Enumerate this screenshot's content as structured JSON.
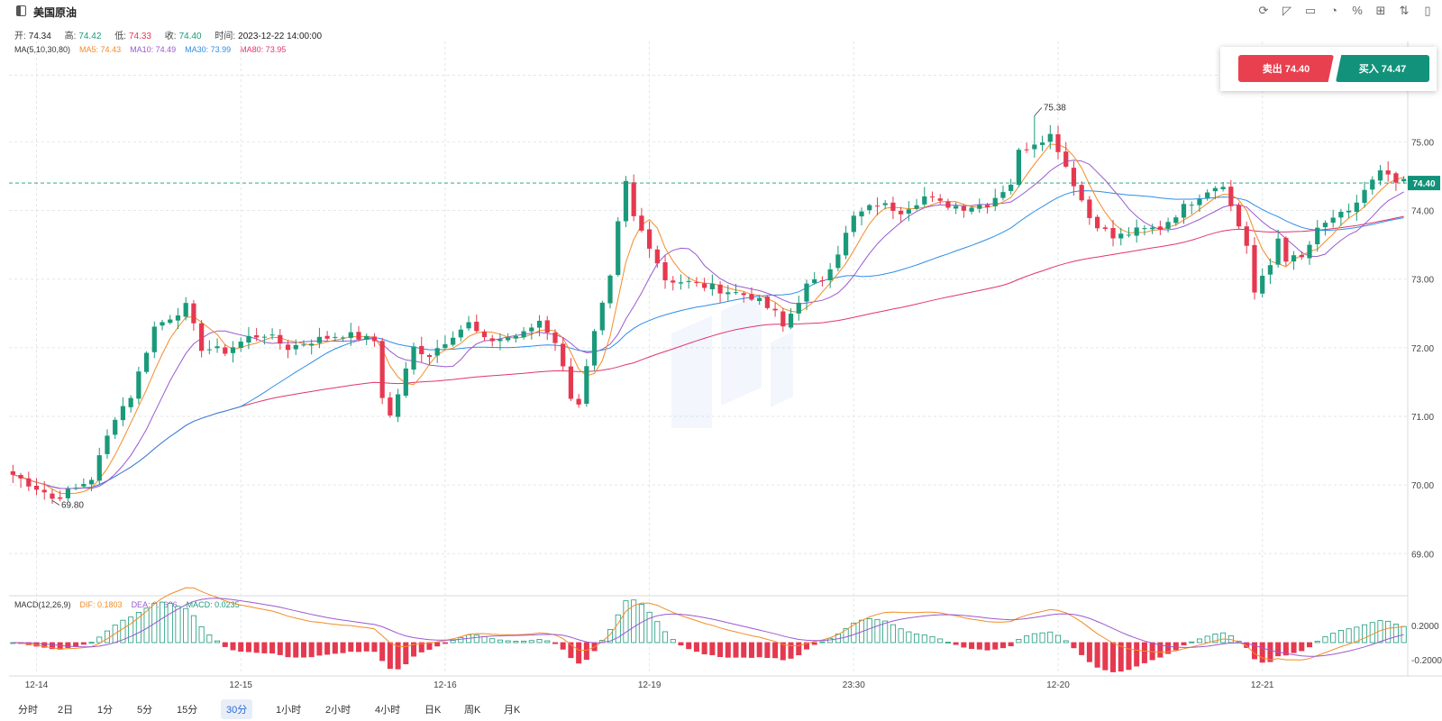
{
  "title": "美国原油",
  "ohlc": {
    "open_label": "开:",
    "open": "74.34",
    "high_label": "高:",
    "high": "74.42",
    "low_label": "低:",
    "low": "74.33",
    "close_label": "收:",
    "close": "74.40",
    "time_label": "时间:",
    "time": "2023-12-22 14:00:00"
  },
  "ma_legend": [
    {
      "text": "MA(5,10,30,80)",
      "color": "#333333"
    },
    {
      "text": "MA5: 74.43",
      "color": "#f28c28"
    },
    {
      "text": "MA10: 74.49",
      "color": "#9b59d0"
    },
    {
      "text": "MA30: 73.99",
      "color": "#2e8de6"
    },
    {
      "text": "MA80: 73.95",
      "color": "#e0356b"
    }
  ],
  "macd_legend": [
    {
      "text": "MACD(12,26,9)",
      "color": "#333333"
    },
    {
      "text": "DIF: 0.1803",
      "color": "#f28c28"
    },
    {
      "text": "DEA: 0.1686",
      "color": "#9b59d0"
    },
    {
      "text": "MACD: 0.0235",
      "color": "#1a9a7a"
    }
  ],
  "trade": {
    "sell": "卖出 74.40",
    "buy": "买入 74.47"
  },
  "toolbar_icons": [
    "refresh-icon",
    "draw-icon",
    "chart-type-icon",
    "pie-icon",
    "percent-icon",
    "layout-icon",
    "compare-icon",
    "panel-icon"
  ],
  "periods": [
    {
      "label": "分时",
      "active": false
    },
    {
      "label": "2日",
      "active": false
    },
    {
      "label": "1分",
      "active": false
    },
    {
      "label": "5分",
      "active": false
    },
    {
      "label": "15分",
      "active": false
    },
    {
      "label": "30分",
      "active": true
    },
    {
      "label": "1小时",
      "active": false
    },
    {
      "label": "2小时",
      "active": false
    },
    {
      "label": "4小时",
      "active": false
    },
    {
      "label": "日K",
      "active": false
    },
    {
      "label": "周K",
      "active": false
    },
    {
      "label": "月K",
      "active": false
    }
  ],
  "colors": {
    "up": "#1a9a7a",
    "down": "#e53950",
    "ma5": "#f28c28",
    "ma10": "#9b59d0",
    "ma30": "#2e8de6",
    "ma80": "#e0356b",
    "dif": "#f28c28",
    "dea": "#9b59d0"
  },
  "chart_data": {
    "type": "candlestick",
    "instrument": "美国原油",
    "price_axis": {
      "ticks": [
        75.0,
        74.0,
        73.0,
        72.0,
        71.0,
        70.0,
        69.0
      ],
      "tick_labels": [
        "75.00",
        "74.00",
        "73.00",
        "72.00",
        "71.00",
        "70.00",
        "69.00"
      ],
      "range": [
        68.4,
        76.2
      ]
    },
    "x_ticks": [
      {
        "label": "12-14",
        "index": 3
      },
      {
        "label": "12-15",
        "index": 29
      },
      {
        "label": "12-16",
        "index": 55
      },
      {
        "label": "12-19",
        "index": 81
      },
      {
        "label": "23:30",
        "index": 107
      },
      {
        "label": "12-20",
        "index": 133
      },
      {
        "label": "12-21",
        "index": 159
      }
    ],
    "last_price": "74.40",
    "annotations": [
      {
        "label": "75.38",
        "index": 130,
        "value": 75.38
      },
      {
        "label": "69.80",
        "index": 5,
        "value": 69.8
      }
    ],
    "anchors": [
      [
        0,
        70.15
      ],
      [
        4,
        69.9
      ],
      [
        5,
        69.8
      ],
      [
        8,
        69.95
      ],
      [
        10,
        70.1
      ],
      [
        13,
        71.0
      ],
      [
        15,
        71.3
      ],
      [
        18,
        72.3
      ],
      [
        22,
        72.6
      ],
      [
        24,
        72.0
      ],
      [
        27,
        71.95
      ],
      [
        30,
        72.15
      ],
      [
        32,
        72.2
      ],
      [
        35,
        72.0
      ],
      [
        38,
        72.1
      ],
      [
        42,
        72.2
      ],
      [
        46,
        72.1
      ],
      [
        47,
        71.3
      ],
      [
        48,
        71.0
      ],
      [
        51,
        72.0
      ],
      [
        53,
        71.9
      ],
      [
        56,
        72.2
      ],
      [
        58,
        72.35
      ],
      [
        60,
        72.1
      ],
      [
        63,
        72.15
      ],
      [
        65,
        72.2
      ],
      [
        67,
        72.4
      ],
      [
        69,
        72.1
      ],
      [
        71,
        71.3
      ],
      [
        72,
        71.2
      ],
      [
        74,
        72.2
      ],
      [
        76,
        73.0
      ],
      [
        77,
        73.8
      ],
      [
        78,
        74.4
      ],
      [
        79,
        73.9
      ],
      [
        81,
        73.5
      ],
      [
        83,
        73.0
      ],
      [
        86,
        72.95
      ],
      [
        90,
        72.85
      ],
      [
        94,
        72.75
      ],
      [
        97,
        72.5
      ],
      [
        98,
        72.3
      ],
      [
        101,
        72.9
      ],
      [
        103,
        73.0
      ],
      [
        105,
        73.4
      ],
      [
        107,
        73.9
      ],
      [
        110,
        74.1
      ],
      [
        113,
        74.0
      ],
      [
        116,
        74.2
      ],
      [
        118,
        74.1
      ],
      [
        121,
        74.05
      ],
      [
        124,
        74.1
      ],
      [
        127,
        74.4
      ],
      [
        128,
        74.85
      ],
      [
        130,
        75.0
      ],
      [
        132,
        75.1
      ],
      [
        133,
        74.9
      ],
      [
        135,
        74.4
      ],
      [
        137,
        73.9
      ],
      [
        140,
        73.6
      ],
      [
        143,
        73.7
      ],
      [
        146,
        73.75
      ],
      [
        149,
        74.05
      ],
      [
        152,
        74.3
      ],
      [
        154,
        74.4
      ],
      [
        155,
        74.05
      ],
      [
        157,
        73.5
      ],
      [
        158,
        72.8
      ],
      [
        160,
        73.2
      ],
      [
        161,
        73.6
      ],
      [
        162,
        73.3
      ],
      [
        164,
        73.3
      ],
      [
        166,
        73.7
      ],
      [
        168,
        73.9
      ],
      [
        170,
        73.95
      ],
      [
        172,
        74.3
      ],
      [
        174,
        74.55
      ],
      [
        176,
        74.4
      ]
    ],
    "ma_last": {
      "MA5": 74.43,
      "MA10": 74.49,
      "MA30": 73.99,
      "MA80": 73.95
    },
    "macd": {
      "params": "12,26,9",
      "dif": 0.1803,
      "dea": 0.1686,
      "macd": 0.0235,
      "ticks": [
        "0.2000",
        "-0.2000"
      ]
    }
  }
}
